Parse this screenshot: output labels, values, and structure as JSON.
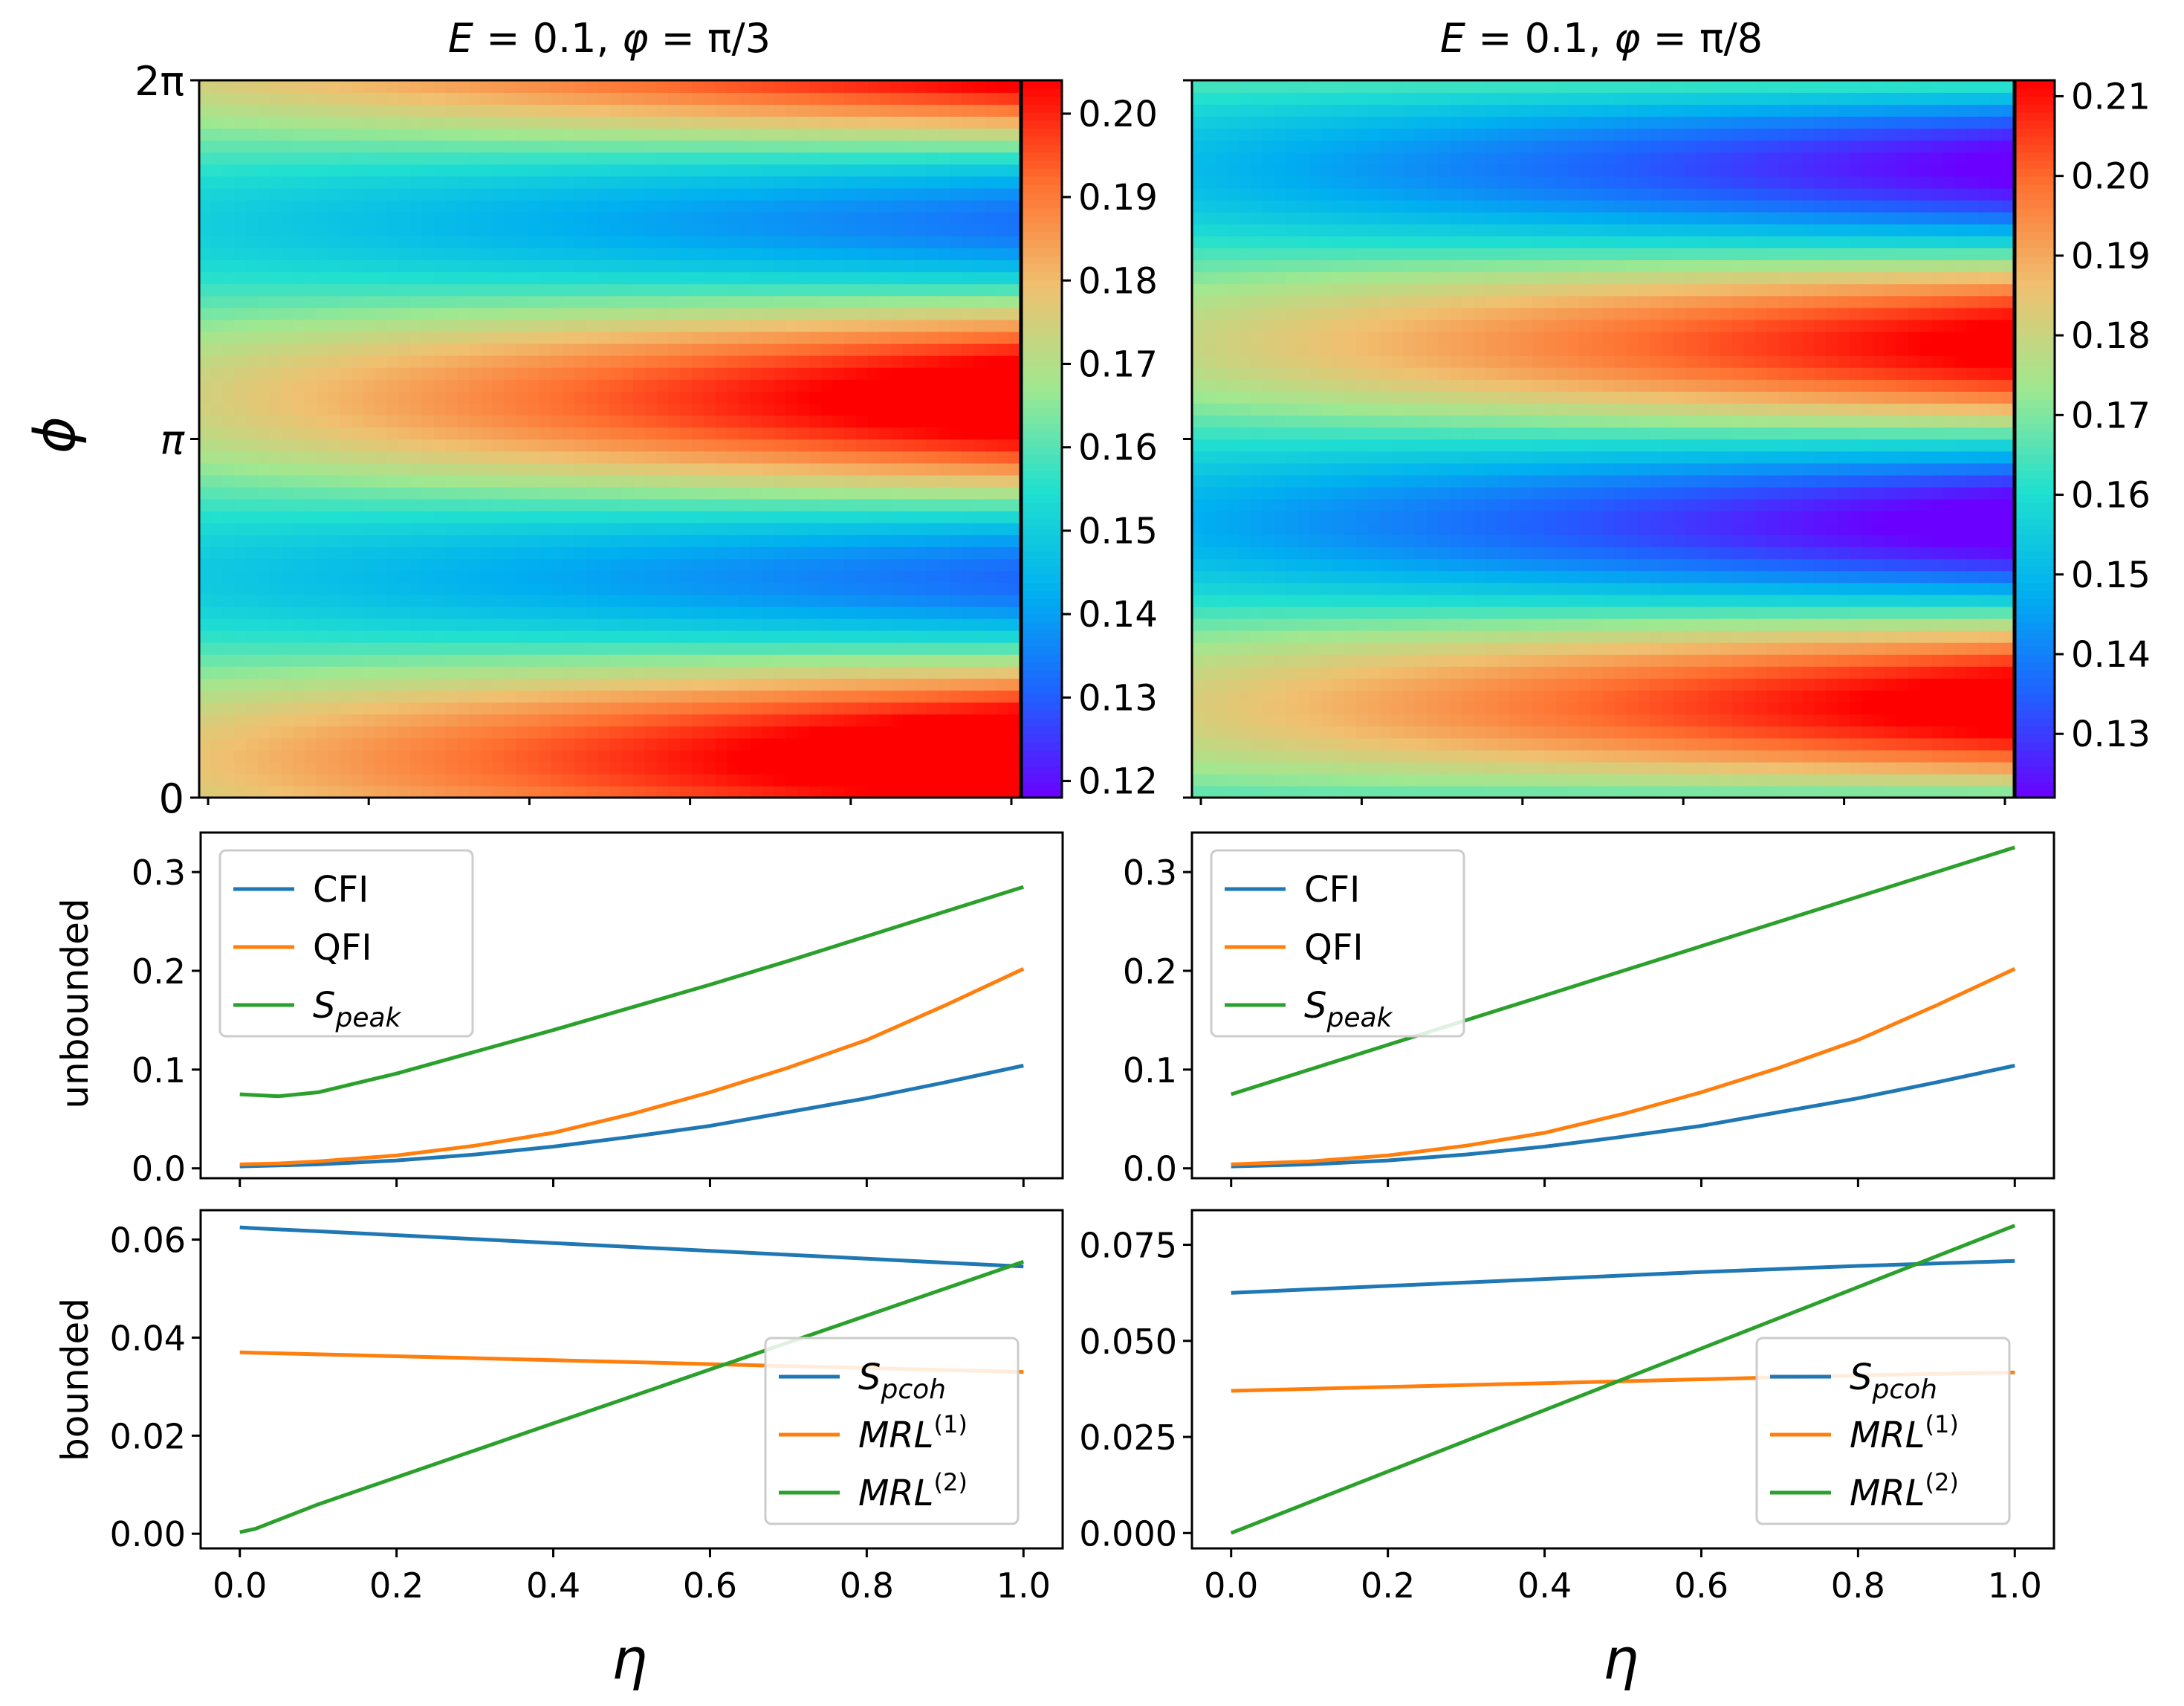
{
  "figure": {
    "heatmap_ylabel": "ϕ",
    "row_label_unbounded": "unbounded",
    "row_label_bounded": "bounded",
    "xlabel": "η"
  },
  "colors": {
    "CFI": "#1f77b4",
    "QFI": "#ff7f0e",
    "Speak": "#2ca02c",
    "Spcoh": "#1f77b4",
    "MRL1": "#ff7f0e",
    "MRL2": "#2ca02c",
    "axes": "#000000",
    "background": "#ffffff",
    "colormap_stops": [
      "#6a00ff",
      "#2060ff",
      "#00b0f0",
      "#20e0d0",
      "#a0e890",
      "#f0c070",
      "#ff7030",
      "#ff0000"
    ]
  },
  "chart_data": [
    {
      "id": "heatmap-left",
      "type": "heatmap",
      "title": "E = 0.1, φ = π/3",
      "title_parts": {
        "E": "E",
        "eq1": " = 0.1, ",
        "phi": "φ",
        "eq2": " = π/3"
      },
      "xlabel": "",
      "ylabel": "ϕ",
      "x_range": [
        0,
        1
      ],
      "y_range": [
        0,
        6.2832
      ],
      "ytick_labels": [
        "0",
        "π",
        "2π"
      ],
      "model": {
        "c0": 0.163,
        "cslope": 0.011,
        "A": 0.002,
        "B": 0.038,
        "phase": 0.7,
        "n": 2,
        "sigma": 0.35
      },
      "colorbar": {
        "min": 0.118,
        "max": 0.204,
        "ticks": [
          0.12,
          0.13,
          0.14,
          0.15,
          0.16,
          0.17,
          0.18,
          0.19,
          0.2
        ],
        "tick_labels": [
          "0.12",
          "0.13",
          "0.14",
          "0.15",
          "0.16",
          "0.17",
          "0.18",
          "0.19",
          "0.20"
        ]
      }
    },
    {
      "id": "heatmap-right",
      "type": "heatmap",
      "title": "E = 0.1, φ = π/8",
      "title_parts": {
        "E": "E",
        "eq1": " = 0.1, ",
        "phi": "φ",
        "eq2": " = π/8"
      },
      "xlabel": "",
      "ylabel": "",
      "x_range": [
        0,
        1
      ],
      "y_range": [
        0,
        6.2832
      ],
      "ytick_labels": [],
      "model": {
        "c0": 0.165,
        "cslope": 0.003,
        "A": 0.002,
        "B": 0.045,
        "phase": 1.65,
        "n": 2,
        "sigma": 0.35
      },
      "colorbar": {
        "min": 0.122,
        "max": 0.212,
        "ticks": [
          0.13,
          0.14,
          0.15,
          0.16,
          0.17,
          0.18,
          0.19,
          0.2,
          0.21
        ],
        "tick_labels": [
          "0.13",
          "0.14",
          "0.15",
          "0.16",
          "0.17",
          "0.18",
          "0.19",
          "0.20",
          "0.21"
        ]
      }
    },
    {
      "id": "unbounded-left",
      "type": "line",
      "ylabel": "unbounded",
      "x": [
        0.0,
        0.05,
        0.1,
        0.2,
        0.3,
        0.4,
        0.5,
        0.6,
        0.7,
        0.8,
        0.9,
        1.0
      ],
      "xlim": [
        -0.05,
        1.05
      ],
      "ylim": [
        -0.01,
        0.34
      ],
      "yticks": [
        0.0,
        0.1,
        0.2,
        0.3
      ],
      "ytick_labels": [
        "0.0",
        "0.1",
        "0.2",
        "0.3"
      ],
      "legend": "upper-left",
      "series": [
        {
          "name": "CFI",
          "legend_main": "CFI",
          "legend_sub": "",
          "color": "#1f77b4",
          "values": [
            0.002,
            0.003,
            0.004,
            0.008,
            0.014,
            0.022,
            0.032,
            0.043,
            0.057,
            0.071,
            0.087,
            0.104
          ]
        },
        {
          "name": "QFI",
          "legend_main": "QFI",
          "legend_sub": "",
          "color": "#ff7f0e",
          "values": [
            0.004,
            0.005,
            0.007,
            0.013,
            0.023,
            0.036,
            0.055,
            0.077,
            0.102,
            0.13,
            0.165,
            0.202
          ]
        },
        {
          "name": "S_peak",
          "legend_main": "S",
          "legend_sub": "peak",
          "color": "#2ca02c",
          "values": [
            0.075,
            0.073,
            0.077,
            0.096,
            0.118,
            0.14,
            0.163,
            0.186,
            0.21,
            0.235,
            0.26,
            0.285
          ]
        }
      ]
    },
    {
      "id": "unbounded-right",
      "type": "line",
      "ylabel": "",
      "x": [
        0.0,
        0.1,
        0.2,
        0.3,
        0.4,
        0.5,
        0.6,
        0.7,
        0.8,
        0.9,
        1.0
      ],
      "xlim": [
        -0.05,
        1.05
      ],
      "ylim": [
        -0.01,
        0.34
      ],
      "yticks": [
        0.0,
        0.1,
        0.2,
        0.3
      ],
      "ytick_labels": [
        "0.0",
        "0.1",
        "0.2",
        "0.3"
      ],
      "legend": "upper-left",
      "series": [
        {
          "name": "CFI",
          "legend_main": "CFI",
          "legend_sub": "",
          "color": "#1f77b4",
          "values": [
            0.002,
            0.004,
            0.008,
            0.014,
            0.022,
            0.032,
            0.043,
            0.057,
            0.071,
            0.087,
            0.104
          ]
        },
        {
          "name": "QFI",
          "legend_main": "QFI",
          "legend_sub": "",
          "color": "#ff7f0e",
          "values": [
            0.004,
            0.007,
            0.013,
            0.023,
            0.036,
            0.055,
            0.077,
            0.102,
            0.13,
            0.165,
            0.202
          ]
        },
        {
          "name": "S_peak",
          "legend_main": "S",
          "legend_sub": "peak",
          "color": "#2ca02c",
          "values": [
            0.075,
            0.1,
            0.125,
            0.15,
            0.175,
            0.2,
            0.225,
            0.25,
            0.275,
            0.3,
            0.325
          ]
        }
      ]
    },
    {
      "id": "bounded-left",
      "type": "line",
      "ylabel": "bounded",
      "xlabel": "η",
      "x": [
        0.0,
        0.02,
        0.1,
        0.2,
        0.3,
        0.4,
        0.5,
        0.6,
        0.7,
        0.8,
        0.9,
        1.0
      ],
      "xlim": [
        -0.05,
        1.05
      ],
      "ylim": [
        -0.003,
        0.066
      ],
      "yticks": [
        0.0,
        0.02,
        0.04,
        0.06
      ],
      "ytick_labels": [
        "0.00",
        "0.02",
        "0.04",
        "0.06"
      ],
      "xticks": [
        0.0,
        0.2,
        0.4,
        0.6,
        0.8,
        1.0
      ],
      "xtick_labels": [
        "0.0",
        "0.2",
        "0.4",
        "0.6",
        "0.8",
        "1.0"
      ],
      "legend": "lower-right",
      "series": [
        {
          "name": "S_pcoh",
          "legend_main": "S",
          "legend_sub": "pcoh",
          "color": "#1f77b4",
          "values": [
            0.0625,
            0.0623,
            0.0617,
            0.0609,
            0.0601,
            0.0593,
            0.0585,
            0.0577,
            0.0569,
            0.0561,
            0.0553,
            0.0545
          ]
        },
        {
          "name": "MRL(1)",
          "legend_main": "MRL",
          "legend_sup": "(1)",
          "color": "#ff7f0e",
          "values": [
            0.037,
            0.0369,
            0.0366,
            0.0362,
            0.0358,
            0.0354,
            0.035,
            0.0346,
            0.0342,
            0.0338,
            0.0334,
            0.033
          ]
        },
        {
          "name": "MRL(2)",
          "legend_main": "MRL",
          "legend_sup": "(2)",
          "color": "#2ca02c",
          "values": [
            0.0003,
            0.001,
            0.006,
            0.0115,
            0.017,
            0.0225,
            0.028,
            0.0335,
            0.039,
            0.0445,
            0.05,
            0.0555
          ]
        }
      ]
    },
    {
      "id": "bounded-right",
      "type": "line",
      "ylabel": "",
      "xlabel": "η",
      "x": [
        0.0,
        0.2,
        0.4,
        0.6,
        0.8,
        1.0
      ],
      "xlim": [
        -0.05,
        1.05
      ],
      "ylim": [
        -0.004,
        0.084
      ],
      "yticks": [
        0.0,
        0.025,
        0.05,
        0.075
      ],
      "ytick_labels": [
        "0.000",
        "0.025",
        "0.050",
        "0.075"
      ],
      "xticks": [
        0.0,
        0.2,
        0.4,
        0.6,
        0.8,
        1.0
      ],
      "xtick_labels": [
        "0.0",
        "0.2",
        "0.4",
        "0.6",
        "0.8",
        "1.0"
      ],
      "legend": "lower-right",
      "series": [
        {
          "name": "S_pcoh",
          "legend_main": "S",
          "legend_sub": "pcoh",
          "color": "#1f77b4",
          "values": [
            0.0625,
            0.0643,
            0.0661,
            0.0679,
            0.0695,
            0.0708
          ]
        },
        {
          "name": "MRL(1)",
          "legend_main": "MRL",
          "legend_sup": "(1)",
          "color": "#ff7f0e",
          "values": [
            0.037,
            0.038,
            0.039,
            0.04,
            0.041,
            0.0418
          ]
        },
        {
          "name": "MRL(2)",
          "legend_main": "MRL",
          "legend_sup": "(2)",
          "color": "#2ca02c",
          "values": [
            0.0,
            0.016,
            0.032,
            0.048,
            0.064,
            0.08
          ]
        }
      ]
    }
  ]
}
